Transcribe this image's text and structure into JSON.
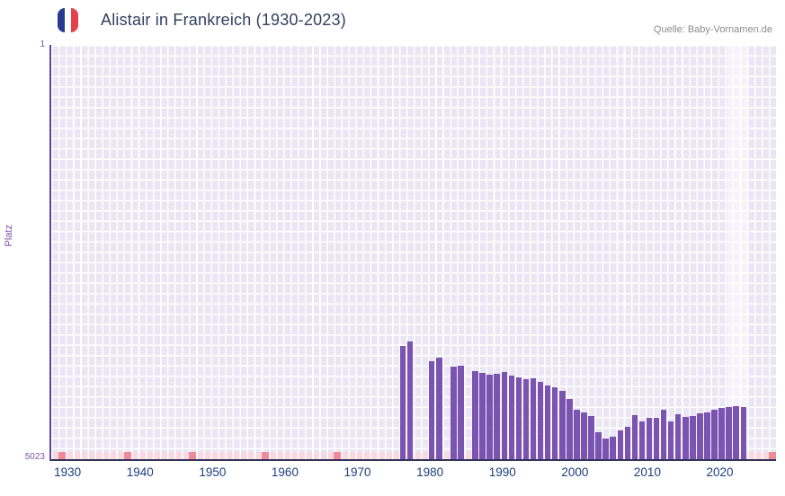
{
  "header": {
    "source": "Quelle: Baby-Vornamen.de"
  },
  "chart_data": {
    "type": "bar",
    "title": "Alistair in Frankreich (1930-2023)",
    "ylabel": "Platz",
    "y_axis": {
      "top_label": "1",
      "bottom_label": "5023",
      "min": 1,
      "max": 5023,
      "inverted": true
    },
    "x_axis": {
      "start": 1928,
      "end": 2028,
      "ticks": [
        1930,
        1940,
        1950,
        1960,
        1970,
        1980,
        1990,
        2000,
        2010,
        2020
      ]
    },
    "legend": "none",
    "grid": true,
    "points": [
      {
        "year": 1976,
        "rank": 3650
      },
      {
        "year": 1977,
        "rank": 3600
      },
      {
        "year": 1980,
        "rank": 3830
      },
      {
        "year": 1981,
        "rank": 3790
      },
      {
        "year": 1983,
        "rank": 3900
      },
      {
        "year": 1984,
        "rank": 3890
      },
      {
        "year": 1986,
        "rank": 3950
      },
      {
        "year": 1987,
        "rank": 3975
      },
      {
        "year": 1988,
        "rank": 4000
      },
      {
        "year": 1989,
        "rank": 3990
      },
      {
        "year": 1990,
        "rank": 3965
      },
      {
        "year": 1991,
        "rank": 4010
      },
      {
        "year": 1992,
        "rank": 4030
      },
      {
        "year": 1993,
        "rank": 4055
      },
      {
        "year": 1994,
        "rank": 4040
      },
      {
        "year": 1995,
        "rank": 4085
      },
      {
        "year": 1996,
        "rank": 4130
      },
      {
        "year": 1997,
        "rank": 4155
      },
      {
        "year": 1998,
        "rank": 4195
      },
      {
        "year": 1999,
        "rank": 4290
      },
      {
        "year": 2000,
        "rank": 4420
      },
      {
        "year": 2001,
        "rank": 4455
      },
      {
        "year": 2002,
        "rank": 4500
      },
      {
        "year": 2003,
        "rank": 4695
      },
      {
        "year": 2004,
        "rank": 4770
      },
      {
        "year": 2005,
        "rank": 4750
      },
      {
        "year": 2006,
        "rank": 4675
      },
      {
        "year": 2007,
        "rank": 4630
      },
      {
        "year": 2008,
        "rank": 4490
      },
      {
        "year": 2009,
        "rank": 4565
      },
      {
        "year": 2010,
        "rank": 4520
      },
      {
        "year": 2011,
        "rank": 4520
      },
      {
        "year": 2012,
        "rank": 4420
      },
      {
        "year": 2013,
        "rank": 4565
      },
      {
        "year": 2014,
        "rank": 4480
      },
      {
        "year": 2015,
        "rank": 4510
      },
      {
        "year": 2016,
        "rank": 4500
      },
      {
        "year": 2017,
        "rank": 4465
      },
      {
        "year": 2018,
        "rank": 4455
      },
      {
        "year": 2019,
        "rank": 4420
      },
      {
        "year": 2020,
        "rank": 4400
      },
      {
        "year": 2021,
        "rank": 4390
      },
      {
        "year": 2022,
        "rank": 4380
      },
      {
        "year": 2023,
        "rank": 4390
      }
    ],
    "highlight_band": {
      "from": 2021.3,
      "to": 2024.0
    },
    "bottom_strip": {
      "accent_years": [
        1929,
        1938,
        1947,
        1957,
        1967,
        2027
      ]
    },
    "colors": {
      "bar": "#7b54b2",
      "plot_bg": "#eae6f3",
      "grid_line": "#ffffff",
      "axis_left": "#56499c",
      "axis_bottom": "#34345a",
      "tick_label": "#1d3e7e",
      "y_label": "#7b52ab",
      "strip": "#f8d9e2",
      "strip_accent": "#ef8a9b",
      "highlight_band": "rgba(255,255,255,0.5)",
      "title": "#31405f",
      "source": "#8b8b8b",
      "flag_blue": "#2a3990",
      "flag_red": "#e8414e"
    }
  }
}
